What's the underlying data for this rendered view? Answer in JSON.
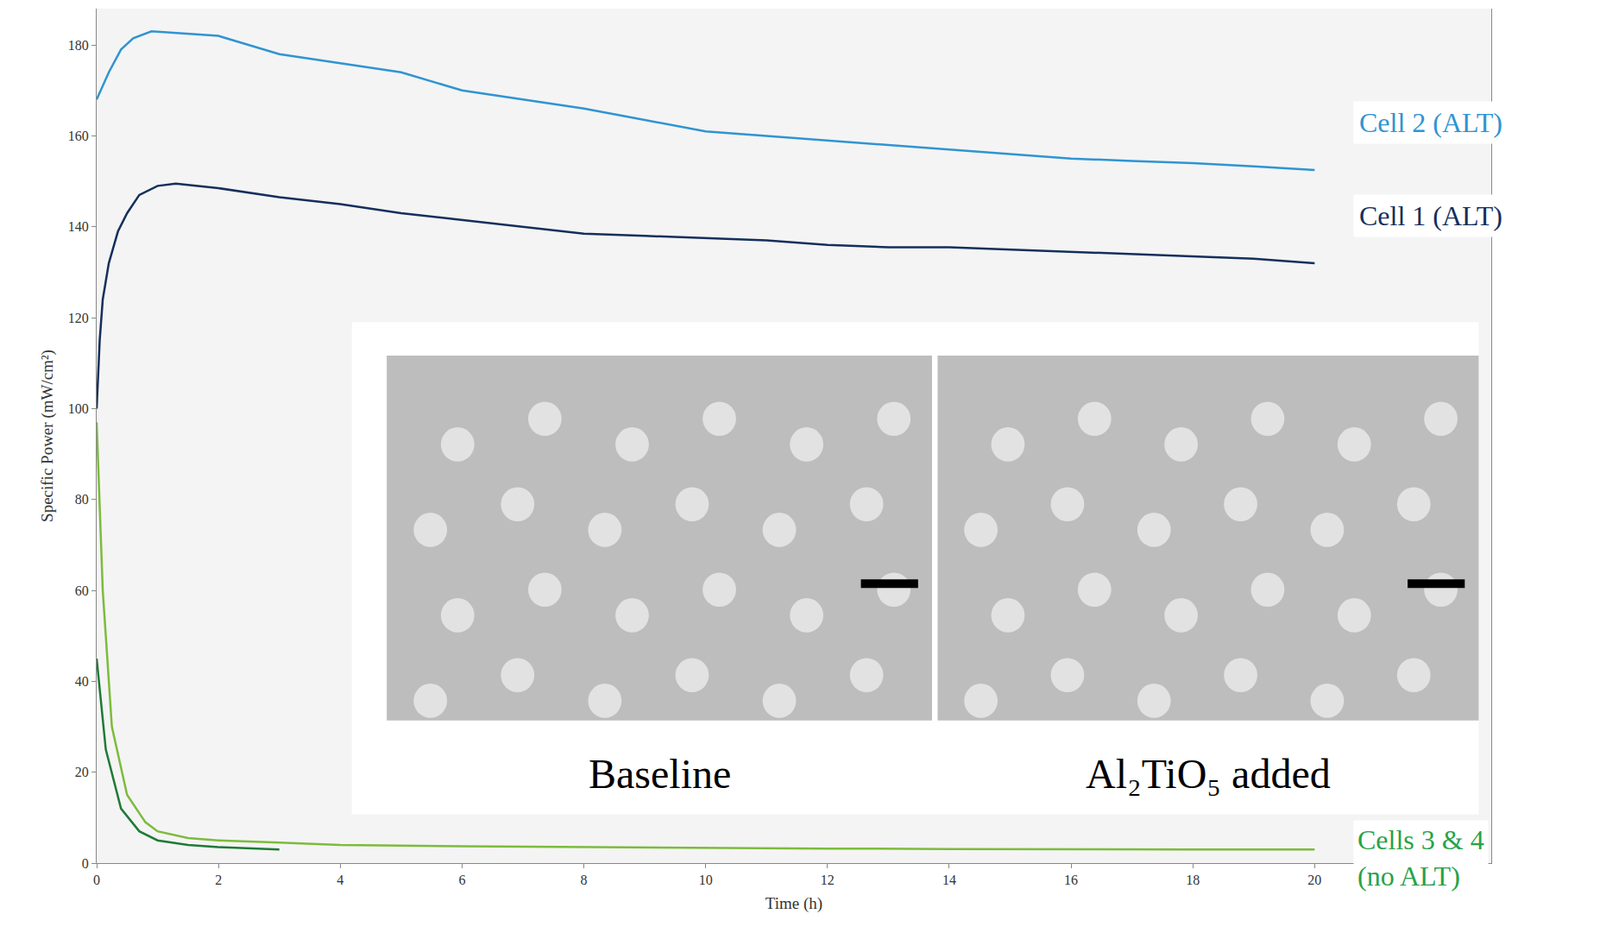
{
  "chart_data": {
    "type": "line",
    "x_label": "Time (h)",
    "y_label": "Specific Power (mW/cm²)",
    "xlim": [
      0,
      22.9
    ],
    "xticks": [
      0,
      2,
      4,
      6,
      8,
      10,
      12,
      14,
      16,
      18,
      20
    ],
    "ylim": [
      0,
      188
    ],
    "yticks": [
      0,
      20,
      40,
      60,
      80,
      100,
      120,
      140,
      160,
      180
    ],
    "grid": false,
    "series": [
      {
        "name": "Cell 2 (ALT)",
        "color": "#2f94d2",
        "x": [
          0,
          0.2,
          0.4,
          0.6,
          0.9,
          1.5,
          2,
          3,
          4,
          5,
          6,
          7,
          8,
          9,
          10,
          11,
          12,
          13,
          14,
          15,
          16,
          17,
          18,
          19,
          20
        ],
        "values": [
          168,
          174,
          179,
          181.5,
          183,
          182.5,
          182,
          178,
          176,
          174,
          170,
          168,
          166,
          163.5,
          161,
          160,
          159,
          158,
          157,
          156,
          155,
          154.5,
          154,
          153.3,
          152.5
        ]
      },
      {
        "name": "Cell 1 (ALT)",
        "color": "#142f5c",
        "x": [
          0,
          0.05,
          0.1,
          0.2,
          0.35,
          0.5,
          0.7,
          1,
          1.3,
          2,
          3,
          4,
          5,
          6,
          7,
          8,
          9,
          10,
          11,
          12,
          13,
          14,
          15,
          16,
          17,
          18,
          19,
          20
        ],
        "values": [
          100,
          115,
          124,
          132,
          139,
          143,
          147,
          149,
          149.5,
          148.5,
          146.5,
          145,
          143,
          141.5,
          140,
          138.5,
          138,
          137.5,
          137,
          136,
          135.5,
          135.5,
          135,
          134.5,
          134,
          133.5,
          133,
          132
        ]
      },
      {
        "color": "#7dbb3c",
        "x": [
          0,
          0.1,
          0.25,
          0.5,
          0.8,
          1,
          1.5,
          2,
          3,
          4,
          6,
          8,
          10,
          12,
          14,
          16,
          18,
          20
        ],
        "values": [
          97,
          60,
          30,
          15,
          9,
          7,
          5.5,
          5,
          4.5,
          4,
          3.7,
          3.5,
          3.4,
          3.2,
          3.1,
          3,
          3,
          3
        ]
      },
      {
        "color": "#1f7a35",
        "x": [
          0,
          0.15,
          0.4,
          0.7,
          1,
          1.5,
          2,
          3
        ],
        "values": [
          45,
          25,
          12,
          7,
          5,
          4,
          3.5,
          3
        ]
      }
    ],
    "annotations": [
      {
        "text": "Cells 3 & 4 (no ALT)",
        "color": "#27a24a"
      }
    ],
    "inset": {
      "panels": [
        "Baseline",
        "Al₂TiO₅ added"
      ]
    }
  }
}
